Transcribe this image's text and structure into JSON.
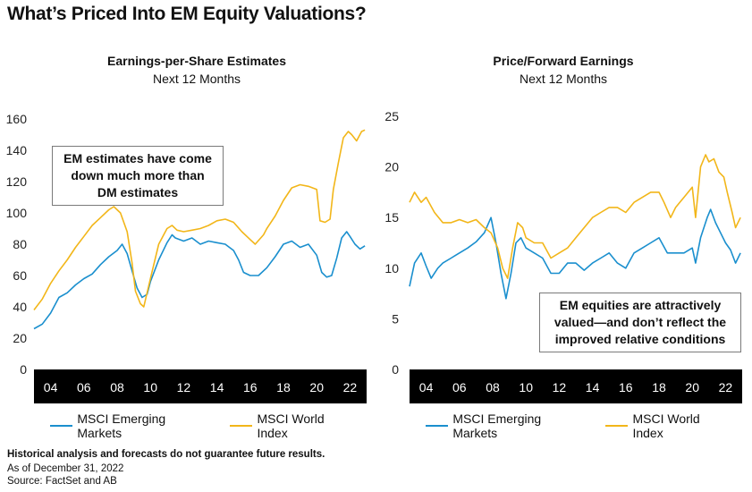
{
  "title": "What’s Priced Into EM Equity Valuations?",
  "colors": {
    "em": "#1a8fce",
    "world": "#f2b619",
    "axis_band": "#000000"
  },
  "footer": {
    "disclaimer": "Historical analysis and forecasts do not guarantee future results.",
    "as_of": "As of December 31, 2022",
    "source": "Source: FactSet and AB"
  },
  "chart_data": [
    {
      "type": "line",
      "title": "Earnings-per-Share Estimates",
      "subtitle": "Next 12 Months",
      "ylim": [
        0,
        160
      ],
      "yticks": [
        0,
        20,
        40,
        60,
        80,
        100,
        120,
        140,
        160
      ],
      "xlim": [
        2003.0,
        2023.0
      ],
      "xticks": [
        2004,
        2006,
        2008,
        2010,
        2012,
        2014,
        2016,
        2018,
        2020,
        2022
      ],
      "xtick_labels": [
        "04",
        "06",
        "08",
        "10",
        "12",
        "14",
        "16",
        "18",
        "20",
        "22"
      ],
      "annotation": "EM estimates have come down much more than DM estimates",
      "series": [
        {
          "name": "MSCI Emerging Markets",
          "color": "#1a8fce",
          "points": [
            [
              2003.0,
              26
            ],
            [
              2003.5,
              29
            ],
            [
              2004.0,
              36
            ],
            [
              2004.5,
              46
            ],
            [
              2005.0,
              49
            ],
            [
              2005.5,
              54
            ],
            [
              2006.0,
              58
            ],
            [
              2006.5,
              61
            ],
            [
              2007.0,
              67
            ],
            [
              2007.5,
              72
            ],
            [
              2008.0,
              76
            ],
            [
              2008.3,
              80
            ],
            [
              2008.6,
              74
            ],
            [
              2008.9,
              63
            ],
            [
              2009.2,
              52
            ],
            [
              2009.5,
              46
            ],
            [
              2009.8,
              48
            ],
            [
              2010.0,
              56
            ],
            [
              2010.5,
              70
            ],
            [
              2011.0,
              81
            ],
            [
              2011.3,
              86
            ],
            [
              2011.5,
              84
            ],
            [
              2012.0,
              82
            ],
            [
              2012.5,
              84
            ],
            [
              2013.0,
              80
            ],
            [
              2013.5,
              82
            ],
            [
              2014.0,
              81
            ],
            [
              2014.5,
              80
            ],
            [
              2015.0,
              76
            ],
            [
              2015.3,
              70
            ],
            [
              2015.6,
              62
            ],
            [
              2016.0,
              60
            ],
            [
              2016.5,
              60
            ],
            [
              2017.0,
              65
            ],
            [
              2017.5,
              72
            ],
            [
              2018.0,
              80
            ],
            [
              2018.5,
              82
            ],
            [
              2019.0,
              78
            ],
            [
              2019.5,
              80
            ],
            [
              2020.0,
              73
            ],
            [
              2020.3,
              62
            ],
            [
              2020.6,
              59
            ],
            [
              2020.9,
              60
            ],
            [
              2021.2,
              71
            ],
            [
              2021.5,
              84
            ],
            [
              2021.8,
              88
            ],
            [
              2022.0,
              85
            ],
            [
              2022.3,
              80
            ],
            [
              2022.6,
              77
            ],
            [
              2022.9,
              79
            ]
          ]
        },
        {
          "name": "MSCI World Index",
          "color": "#f2b619",
          "points": [
            [
              2003.0,
              38
            ],
            [
              2003.5,
              45
            ],
            [
              2004.0,
              55
            ],
            [
              2004.5,
              63
            ],
            [
              2005.0,
              70
            ],
            [
              2005.5,
              78
            ],
            [
              2006.0,
              85
            ],
            [
              2006.5,
              92
            ],
            [
              2007.0,
              97
            ],
            [
              2007.5,
              102
            ],
            [
              2007.8,
              104
            ],
            [
              2008.2,
              100
            ],
            [
              2008.6,
              88
            ],
            [
              2008.9,
              68
            ],
            [
              2009.1,
              50
            ],
            [
              2009.4,
              42
            ],
            [
              2009.6,
              40
            ],
            [
              2010.0,
              58
            ],
            [
              2010.5,
              80
            ],
            [
              2011.0,
              90
            ],
            [
              2011.3,
              92
            ],
            [
              2011.6,
              89
            ],
            [
              2012.0,
              88
            ],
            [
              2012.5,
              89
            ],
            [
              2013.0,
              90
            ],
            [
              2013.5,
              92
            ],
            [
              2014.0,
              95
            ],
            [
              2014.5,
              96
            ],
            [
              2015.0,
              94
            ],
            [
              2015.5,
              88
            ],
            [
              2016.0,
              83
            ],
            [
              2016.3,
              80
            ],
            [
              2016.8,
              86
            ],
            [
              2017.0,
              90
            ],
            [
              2017.5,
              98
            ],
            [
              2018.0,
              108
            ],
            [
              2018.5,
              116
            ],
            [
              2019.0,
              118
            ],
            [
              2019.5,
              117
            ],
            [
              2020.0,
              115
            ],
            [
              2020.2,
              95
            ],
            [
              2020.5,
              94
            ],
            [
              2020.8,
              96
            ],
            [
              2021.0,
              115
            ],
            [
              2021.3,
              132
            ],
            [
              2021.6,
              148
            ],
            [
              2021.9,
              152
            ],
            [
              2022.1,
              150
            ],
            [
              2022.4,
              146
            ],
            [
              2022.7,
              152
            ],
            [
              2022.9,
              153
            ]
          ]
        }
      ]
    },
    {
      "type": "line",
      "title": "Price/Forward Earnings",
      "subtitle": "Next 12 Months",
      "ylim": [
        0,
        25
      ],
      "yticks": [
        0,
        5,
        10,
        15,
        20,
        25
      ],
      "xlim": [
        2003.0,
        2023.0
      ],
      "xticks": [
        2004,
        2006,
        2008,
        2010,
        2012,
        2014,
        2016,
        2018,
        2020,
        2022
      ],
      "xtick_labels": [
        "04",
        "06",
        "08",
        "10",
        "12",
        "14",
        "16",
        "18",
        "20",
        "22"
      ],
      "annotation": "EM equities are attractively valued—and don’t reflect the improved relative conditions",
      "series": [
        {
          "name": "MSCI Emerging Markets",
          "color": "#1a8fce",
          "points": [
            [
              2003.0,
              8.2
            ],
            [
              2003.3,
              10.5
            ],
            [
              2003.7,
              11.5
            ],
            [
              2004.0,
              10.2
            ],
            [
              2004.3,
              9.0
            ],
            [
              2004.7,
              10.0
            ],
            [
              2005.0,
              10.5
            ],
            [
              2005.5,
              11.0
            ],
            [
              2006.0,
              11.5
            ],
            [
              2006.5,
              12.0
            ],
            [
              2007.0,
              12.6
            ],
            [
              2007.5,
              13.5
            ],
            [
              2007.9,
              15.0
            ],
            [
              2008.2,
              12.5
            ],
            [
              2008.5,
              9.5
            ],
            [
              2008.8,
              7.0
            ],
            [
              2009.1,
              9.5
            ],
            [
              2009.4,
              12.5
            ],
            [
              2009.7,
              13.0
            ],
            [
              2010.0,
              12.0
            ],
            [
              2010.5,
              11.5
            ],
            [
              2011.0,
              11.0
            ],
            [
              2011.5,
              9.5
            ],
            [
              2012.0,
              9.5
            ],
            [
              2012.5,
              10.5
            ],
            [
              2013.0,
              10.5
            ],
            [
              2013.5,
              9.8
            ],
            [
              2014.0,
              10.5
            ],
            [
              2014.5,
              11.0
            ],
            [
              2015.0,
              11.5
            ],
            [
              2015.5,
              10.5
            ],
            [
              2016.0,
              10.0
            ],
            [
              2016.5,
              11.5
            ],
            [
              2017.0,
              12.0
            ],
            [
              2017.5,
              12.5
            ],
            [
              2018.0,
              13.0
            ],
            [
              2018.5,
              11.5
            ],
            [
              2019.0,
              11.5
            ],
            [
              2019.5,
              11.5
            ],
            [
              2020.0,
              12.0
            ],
            [
              2020.2,
              10.5
            ],
            [
              2020.5,
              13.0
            ],
            [
              2020.9,
              15.0
            ],
            [
              2021.1,
              15.8
            ],
            [
              2021.4,
              14.5
            ],
            [
              2021.7,
              13.5
            ],
            [
              2022.0,
              12.5
            ],
            [
              2022.3,
              11.8
            ],
            [
              2022.6,
              10.5
            ],
            [
              2022.9,
              11.5
            ]
          ]
        },
        {
          "name": "MSCI World Index",
          "color": "#f2b619",
          "points": [
            [
              2003.0,
              16.5
            ],
            [
              2003.3,
              17.5
            ],
            [
              2003.7,
              16.5
            ],
            [
              2004.0,
              17.0
            ],
            [
              2004.5,
              15.5
            ],
            [
              2005.0,
              14.5
            ],
            [
              2005.5,
              14.5
            ],
            [
              2006.0,
              14.8
            ],
            [
              2006.5,
              14.5
            ],
            [
              2007.0,
              14.8
            ],
            [
              2007.5,
              14.0
            ],
            [
              2007.9,
              13.5
            ],
            [
              2008.3,
              12.0
            ],
            [
              2008.6,
              10.0
            ],
            [
              2008.9,
              9.0
            ],
            [
              2009.2,
              12.0
            ],
            [
              2009.5,
              14.5
            ],
            [
              2009.8,
              14.0
            ],
            [
              2010.0,
              13.0
            ],
            [
              2010.5,
              12.5
            ],
            [
              2011.0,
              12.5
            ],
            [
              2011.5,
              11.0
            ],
            [
              2012.0,
              11.5
            ],
            [
              2012.5,
              12.0
            ],
            [
              2013.0,
              13.0
            ],
            [
              2013.5,
              14.0
            ],
            [
              2014.0,
              15.0
            ],
            [
              2014.5,
              15.5
            ],
            [
              2015.0,
              16.0
            ],
            [
              2015.5,
              16.0
            ],
            [
              2016.0,
              15.5
            ],
            [
              2016.5,
              16.5
            ],
            [
              2017.0,
              17.0
            ],
            [
              2017.5,
              17.5
            ],
            [
              2018.0,
              17.5
            ],
            [
              2018.3,
              16.5
            ],
            [
              2018.7,
              15.0
            ],
            [
              2019.0,
              16.0
            ],
            [
              2019.5,
              17.0
            ],
            [
              2020.0,
              18.0
            ],
            [
              2020.2,
              15.0
            ],
            [
              2020.5,
              20.0
            ],
            [
              2020.8,
              21.2
            ],
            [
              2021.0,
              20.5
            ],
            [
              2021.3,
              20.8
            ],
            [
              2021.6,
              19.5
            ],
            [
              2021.9,
              19.0
            ],
            [
              2022.1,
              17.5
            ],
            [
              2022.4,
              15.5
            ],
            [
              2022.6,
              14.0
            ],
            [
              2022.9,
              15.0
            ]
          ]
        }
      ]
    }
  ]
}
